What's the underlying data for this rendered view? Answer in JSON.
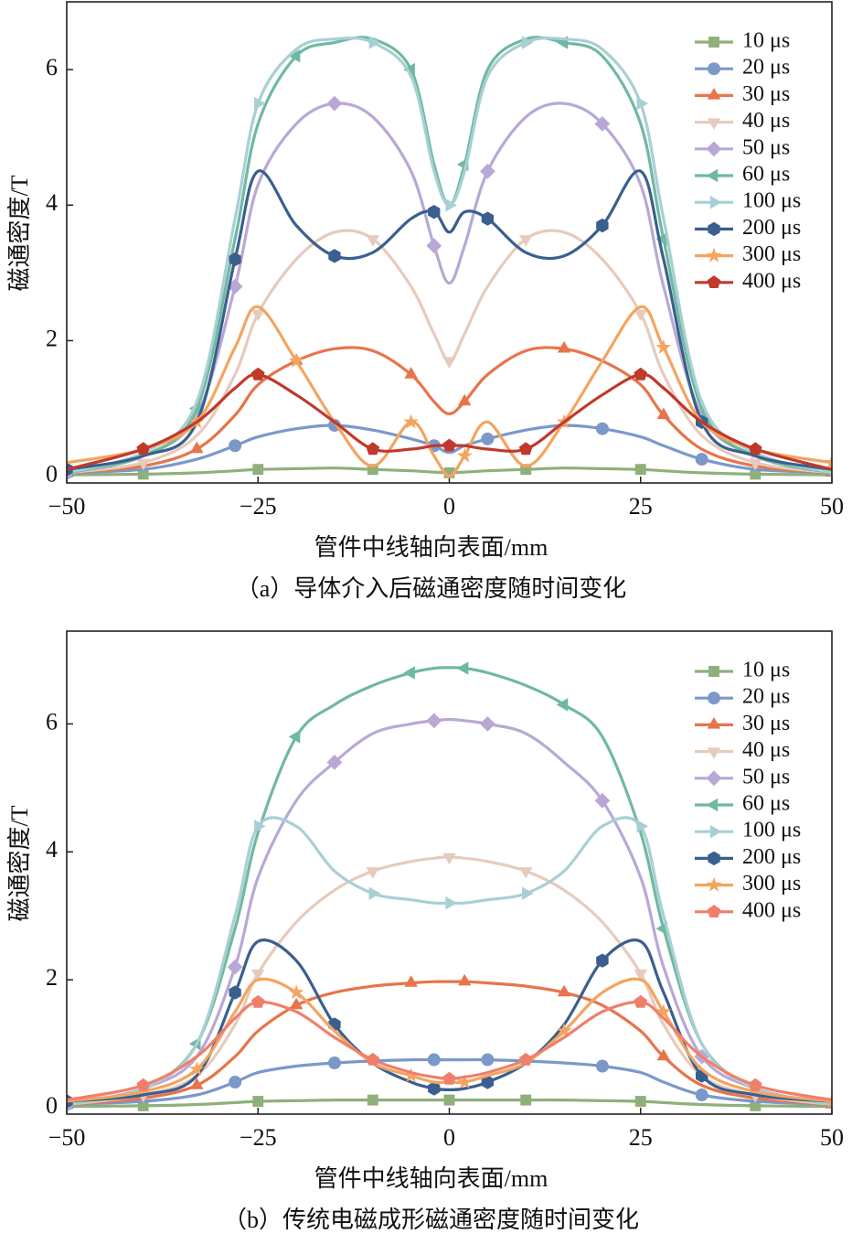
{
  "chart_data": [
    {
      "type": "line",
      "caption": "（a）导体介入后磁通密度随时间变化",
      "xlabel": "管件中线轴向表面/mm",
      "ylabel": "磁通密度/T",
      "x": [
        -50,
        -40,
        -33,
        -28,
        -25,
        -20,
        -15,
        -10,
        -5,
        -2,
        0,
        2,
        5,
        10,
        15,
        20,
        25,
        28,
        33,
        40,
        50
      ],
      "xlim": [
        -50,
        50
      ],
      "ylim": [
        -0.1,
        7
      ],
      "xticks": [
        {
          "value": -50,
          "label": "−50"
        },
        {
          "value": -25,
          "label": "−25"
        },
        0,
        25,
        50
      ],
      "yticks": [
        0,
        2,
        4,
        6
      ],
      "legend": "upper right",
      "series": [
        {
          "name": "10 μs",
          "color": "#8fb07a",
          "marker": "square",
          "values": [
            0.02,
            0.03,
            0.05,
            0.08,
            0.1,
            0.11,
            0.12,
            0.1,
            0.08,
            0.06,
            0.05,
            0.06,
            0.08,
            0.1,
            0.12,
            0.11,
            0.1,
            0.08,
            0.05,
            0.03,
            0.02
          ]
        },
        {
          "name": "20 μs",
          "color": "#7b98c9",
          "marker": "circle",
          "values": [
            0.05,
            0.1,
            0.25,
            0.45,
            0.58,
            0.7,
            0.75,
            0.68,
            0.55,
            0.45,
            0.35,
            0.45,
            0.55,
            0.68,
            0.75,
            0.7,
            0.58,
            0.45,
            0.25,
            0.1,
            0.05
          ]
        },
        {
          "name": "30 μs",
          "color": "#e8744a",
          "marker": "triangle-up",
          "values": [
            0.05,
            0.15,
            0.4,
            0.9,
            1.35,
            1.7,
            1.88,
            1.85,
            1.5,
            1.1,
            0.92,
            1.1,
            1.5,
            1.85,
            1.88,
            1.7,
            1.35,
            0.9,
            0.4,
            0.15,
            0.05
          ]
        },
        {
          "name": "40 μs",
          "color": "#e6cbbd",
          "marker": "triangle-down",
          "values": [
            0.05,
            0.2,
            0.6,
            1.5,
            2.4,
            3.2,
            3.6,
            3.5,
            2.8,
            2.1,
            1.7,
            2.1,
            2.8,
            3.5,
            3.6,
            3.2,
            2.4,
            1.5,
            0.6,
            0.2,
            0.05
          ]
        },
        {
          "name": "50 μs",
          "color": "#b9a8d6",
          "marker": "diamond",
          "values": [
            0.05,
            0.3,
            0.9,
            2.8,
            4.3,
            5.2,
            5.5,
            5.3,
            4.5,
            3.4,
            2.85,
            3.4,
            4.5,
            5.3,
            5.5,
            5.2,
            4.3,
            2.8,
            0.9,
            0.3,
            0.05
          ]
        },
        {
          "name": "60 μs",
          "color": "#6fb9a0",
          "marker": "triangle-left",
          "values": [
            0.05,
            0.3,
            1.0,
            3.5,
            5.2,
            6.2,
            6.4,
            6.45,
            6.0,
            4.6,
            4.0,
            4.6,
            6.0,
            6.45,
            6.4,
            6.2,
            5.2,
            3.5,
            1.0,
            0.3,
            0.05
          ]
        },
        {
          "name": "100 μs",
          "color": "#a8d0d4",
          "marker": "triangle-right",
          "values": [
            0.05,
            0.35,
            1.1,
            3.8,
            5.5,
            6.3,
            6.45,
            6.4,
            5.9,
            4.5,
            4.0,
            4.5,
            5.9,
            6.4,
            6.45,
            6.3,
            5.5,
            3.8,
            1.1,
            0.35,
            0.05
          ]
        },
        {
          "name": "200 μs",
          "color": "#3a5f8f",
          "marker": "hexagon",
          "values": [
            0.1,
            0.3,
            0.8,
            3.2,
            4.5,
            3.7,
            3.25,
            3.3,
            3.8,
            3.9,
            3.6,
            3.9,
            3.8,
            3.3,
            3.25,
            3.7,
            4.5,
            3.2,
            0.8,
            0.3,
            0.1
          ]
        },
        {
          "name": "300 μs",
          "color": "#f4a460",
          "marker": "star",
          "values": [
            0.2,
            0.4,
            0.8,
            1.9,
            2.5,
            1.7,
            0.8,
            0.15,
            0.8,
            0.3,
            0.0,
            0.3,
            0.8,
            0.15,
            0.8,
            1.7,
            2.5,
            1.9,
            0.8,
            0.4,
            0.2
          ]
        },
        {
          "name": "400 μs",
          "color": "#c0392b",
          "marker": "pentagon",
          "values": [
            0.1,
            0.4,
            0.8,
            1.3,
            1.5,
            1.2,
            0.8,
            0.4,
            0.4,
            0.45,
            0.45,
            0.45,
            0.4,
            0.4,
            0.8,
            1.2,
            1.5,
            1.3,
            0.8,
            0.4,
            0.1
          ]
        }
      ]
    },
    {
      "type": "line",
      "caption": "（b）传统电磁成形磁通密度随时间变化",
      "xlabel": "管件中线轴向表面/mm",
      "ylabel": "磁通密度/T",
      "x": [
        -50,
        -40,
        -33,
        -28,
        -25,
        -20,
        -15,
        -10,
        -5,
        -2,
        0,
        2,
        5,
        10,
        15,
        20,
        25,
        28,
        33,
        40,
        50
      ],
      "xlim": [
        -50,
        50
      ],
      "ylim": [
        -0.1,
        7.45
      ],
      "xticks": [
        {
          "value": -50,
          "label": "−50"
        },
        {
          "value": -25,
          "label": "−25"
        },
        0,
        25,
        50
      ],
      "yticks": [
        0,
        2,
        4,
        6
      ],
      "legend": "upper right",
      "series": [
        {
          "name": "10 μs",
          "color": "#8fb07a",
          "marker": "square",
          "values": [
            0.02,
            0.03,
            0.05,
            0.08,
            0.1,
            0.11,
            0.12,
            0.12,
            0.12,
            0.12,
            0.12,
            0.12,
            0.12,
            0.12,
            0.12,
            0.11,
            0.1,
            0.08,
            0.05,
            0.03,
            0.02
          ]
        },
        {
          "name": "20 μs",
          "color": "#7b98c9",
          "marker": "circle",
          "values": [
            0.05,
            0.1,
            0.2,
            0.4,
            0.55,
            0.65,
            0.7,
            0.73,
            0.75,
            0.75,
            0.75,
            0.75,
            0.75,
            0.73,
            0.7,
            0.65,
            0.55,
            0.4,
            0.2,
            0.1,
            0.05
          ]
        },
        {
          "name": "30 μs",
          "color": "#e8744a",
          "marker": "triangle-up",
          "values": [
            0.05,
            0.15,
            0.35,
            0.8,
            1.2,
            1.6,
            1.8,
            1.9,
            1.95,
            1.97,
            1.97,
            1.97,
            1.95,
            1.9,
            1.8,
            1.6,
            1.2,
            0.8,
            0.35,
            0.15,
            0.05
          ]
        },
        {
          "name": "40 μs",
          "color": "#e6cbbd",
          "marker": "triangle-down",
          "values": [
            0.05,
            0.2,
            0.5,
            1.3,
            2.1,
            2.9,
            3.4,
            3.7,
            3.85,
            3.9,
            3.92,
            3.9,
            3.85,
            3.7,
            3.4,
            2.9,
            2.1,
            1.3,
            0.5,
            0.2,
            0.05
          ]
        },
        {
          "name": "50 μs",
          "color": "#b9a8d6",
          "marker": "diamond",
          "values": [
            0.05,
            0.3,
            0.8,
            2.2,
            3.6,
            4.8,
            5.4,
            5.85,
            6.0,
            6.05,
            6.07,
            6.05,
            6.0,
            5.85,
            5.4,
            4.8,
            3.6,
            2.2,
            0.8,
            0.3,
            0.05
          ]
        },
        {
          "name": "60 μs",
          "color": "#6fb9a0",
          "marker": "triangle-left",
          "values": [
            0.05,
            0.3,
            1.0,
            2.8,
            4.3,
            5.8,
            6.3,
            6.6,
            6.8,
            6.87,
            6.88,
            6.87,
            6.8,
            6.6,
            6.3,
            5.8,
            4.3,
            2.8,
            1.0,
            0.3,
            0.05
          ]
        },
        {
          "name": "100 μs",
          "color": "#a8d0d4",
          "marker": "triangle-right",
          "values": [
            0.05,
            0.3,
            1.0,
            3.0,
            4.4,
            4.4,
            3.7,
            3.35,
            3.25,
            3.2,
            3.2,
            3.2,
            3.25,
            3.35,
            3.7,
            4.4,
            4.4,
            3.0,
            1.0,
            0.3,
            0.05
          ]
        },
        {
          "name": "200 μs",
          "color": "#3a5f8f",
          "marker": "hexagon",
          "values": [
            0.1,
            0.2,
            0.5,
            1.8,
            2.6,
            2.3,
            1.3,
            0.7,
            0.4,
            0.3,
            0.28,
            0.3,
            0.4,
            0.7,
            1.3,
            2.3,
            2.6,
            1.8,
            0.5,
            0.2,
            0.1
          ]
        },
        {
          "name": "300 μs",
          "color": "#f4a460",
          "marker": "star",
          "values": [
            0.1,
            0.25,
            0.6,
            1.5,
            2.0,
            1.8,
            1.2,
            0.7,
            0.5,
            0.4,
            0.4,
            0.4,
            0.5,
            0.7,
            1.2,
            1.8,
            2.0,
            1.5,
            0.6,
            0.25,
            0.1
          ]
        },
        {
          "name": "400 μs",
          "color": "#ef7f6a",
          "marker": "pentagon",
          "values": [
            0.12,
            0.35,
            0.8,
            1.4,
            1.65,
            1.5,
            1.1,
            0.75,
            0.55,
            0.48,
            0.45,
            0.48,
            0.55,
            0.75,
            1.1,
            1.5,
            1.65,
            1.4,
            0.8,
            0.35,
            0.12
          ]
        }
      ]
    }
  ]
}
